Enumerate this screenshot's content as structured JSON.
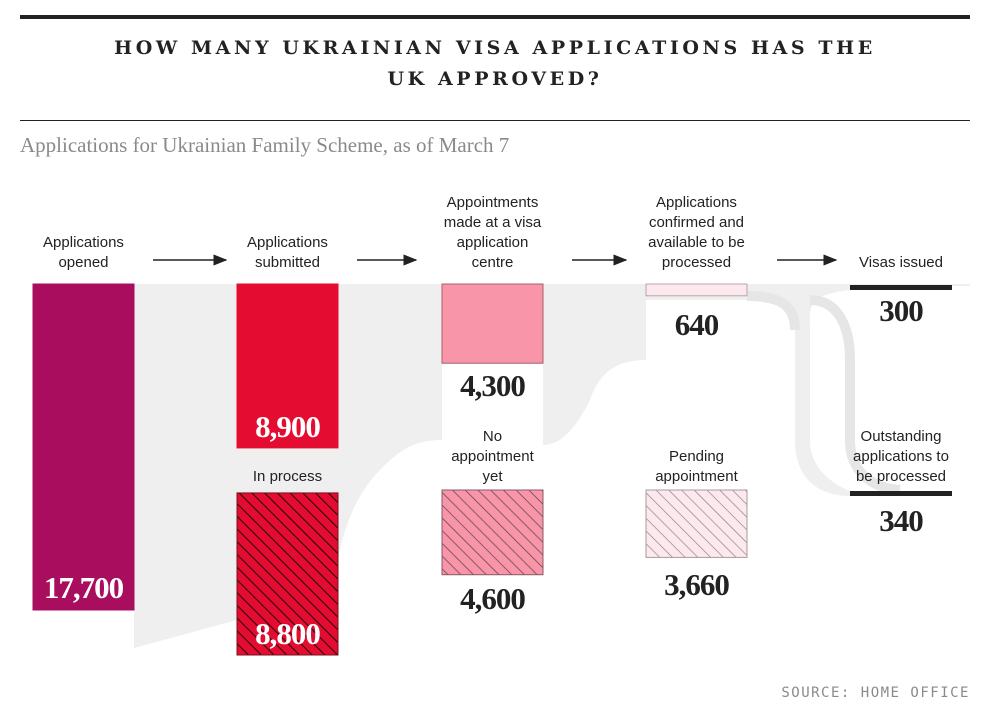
{
  "title": "HOW MANY UKRAINIAN VISA APPLICATIONS HAS THE UK APPROVED?",
  "subtitle": "Applications for Ukrainian Family Scheme, as of March 7",
  "source": "SOURCE: HOME OFFICE",
  "colors": {
    "opened": "#a80d5e",
    "submitted": "#e50c31",
    "visa_centre": "#f895a8",
    "confirmed": "#fce9ee",
    "issued_line": "#222222",
    "flow_band": "#efefef"
  },
  "chart_data": {
    "type": "flow",
    "stages": [
      {
        "id": "opened",
        "label": "Applications opened",
        "value": 17700,
        "value_label": "17,700",
        "pattern": "solid"
      },
      {
        "id": "submitted",
        "label": "Applications submitted",
        "value": 8900,
        "value_label": "8,900",
        "pattern": "solid"
      },
      {
        "id": "in_process",
        "label": "In process",
        "value": 8800,
        "value_label": "8,800",
        "pattern": "hatched"
      },
      {
        "id": "appointments",
        "label": "Appointments made at a visa application centre",
        "value": 4300,
        "value_label": "4,300",
        "pattern": "solid"
      },
      {
        "id": "no_appointment",
        "label": "No appointment yet",
        "value": 4600,
        "value_label": "4,600",
        "pattern": "hatched"
      },
      {
        "id": "confirmed",
        "label": "Applications confirmed and available to be processed",
        "value": 640,
        "value_label": "640",
        "pattern": "solid"
      },
      {
        "id": "pending",
        "label": "Pending appointment",
        "value": 3660,
        "value_label": "3,660",
        "pattern": "hatched"
      },
      {
        "id": "issued",
        "label": "Visas issued",
        "value": 300,
        "value_label": "300",
        "pattern": "line"
      },
      {
        "id": "outstanding",
        "label": "Outstanding applications to be processed",
        "value": 340,
        "value_label": "340",
        "pattern": "line"
      }
    ],
    "flows": [
      {
        "from": "opened",
        "to": "submitted"
      },
      {
        "from": "submitted",
        "to": "appointments"
      },
      {
        "from": "appointments",
        "to": "confirmed"
      },
      {
        "from": "confirmed",
        "to": "issued"
      },
      {
        "from": "confirmed",
        "to": "outstanding"
      }
    ]
  }
}
